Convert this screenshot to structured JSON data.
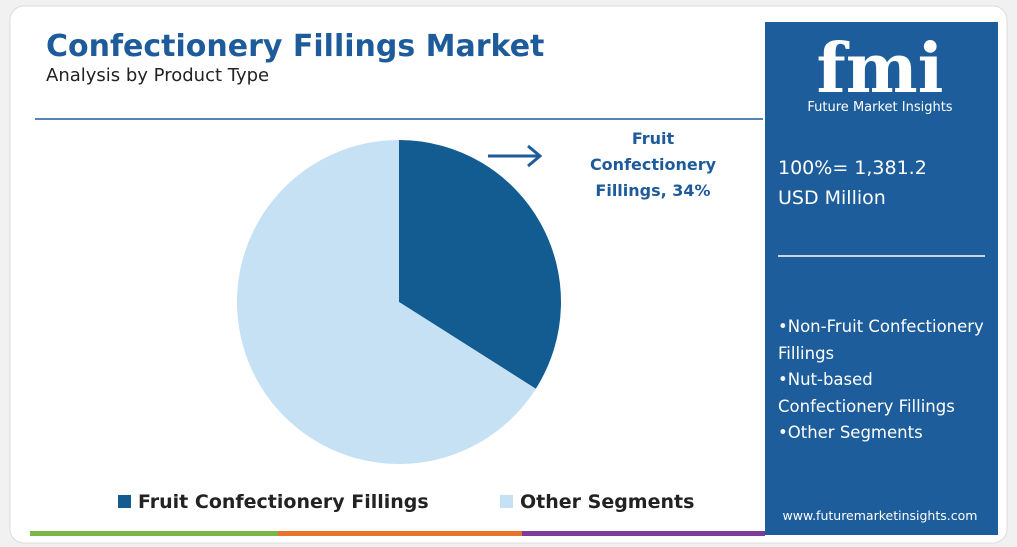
{
  "chart_data": {
    "type": "pie",
    "title": "Confectionery Fillings Market",
    "subtitle": "Analysis by Product Type",
    "categories": [
      "Fruit Confectionery Fillings",
      "Other Segments"
    ],
    "values": [
      34,
      66
    ],
    "colors": [
      "#135c91",
      "#c6e1f3"
    ],
    "annotation": "Fruit Confectionery Fillings, 34%"
  },
  "panel": {
    "logo": "fmi",
    "logo_tagline": "Future Market Insights",
    "total_lines": [
      "100%= 1,381.2",
      "USD Million"
    ],
    "segments": [
      "Non-Fruit Confectionery Fillings",
      "Nut-based Confectionery Fillings",
      "Other Segments"
    ],
    "website": "www.futuremarketinsights.com"
  }
}
